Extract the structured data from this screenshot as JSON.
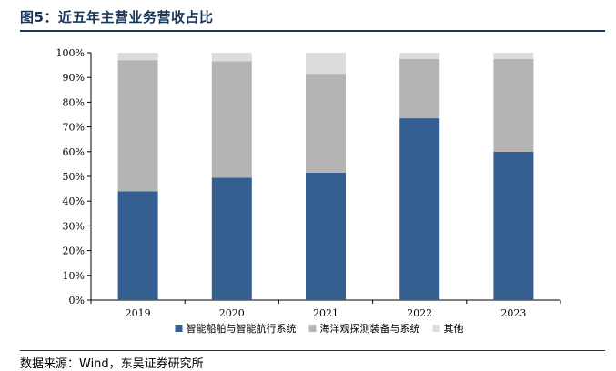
{
  "figure": {
    "title": "图5：近五年主营业务营收占比",
    "source": "数据来源：Wind，东吴证券研究所"
  },
  "colors": {
    "series": [
      "#365f91",
      "#b4b4b4",
      "#dcdcdc"
    ],
    "axis": "#000000",
    "rule": "#16365c"
  },
  "chart_data": {
    "type": "bar",
    "stacked": true,
    "title": "",
    "xlabel": "",
    "ylabel": "",
    "categories": [
      "2019",
      "2020",
      "2021",
      "2022",
      "2023"
    ],
    "series": [
      {
        "name": "智能船舶与智能航行系统",
        "values": [
          44,
          49.5,
          51.5,
          73.5,
          60
        ]
      },
      {
        "name": "海洋观探测装备与系统",
        "values": [
          53,
          47,
          40,
          24,
          37.5
        ]
      },
      {
        "name": "其他",
        "values": [
          3,
          3.5,
          8.5,
          2.5,
          2.5
        ]
      }
    ],
    "ylim": [
      0,
      100
    ],
    "yticks": [
      "0%",
      "10%",
      "20%",
      "30%",
      "40%",
      "50%",
      "60%",
      "70%",
      "80%",
      "90%",
      "100%"
    ],
    "grid": false,
    "legend_position": "bottom"
  }
}
